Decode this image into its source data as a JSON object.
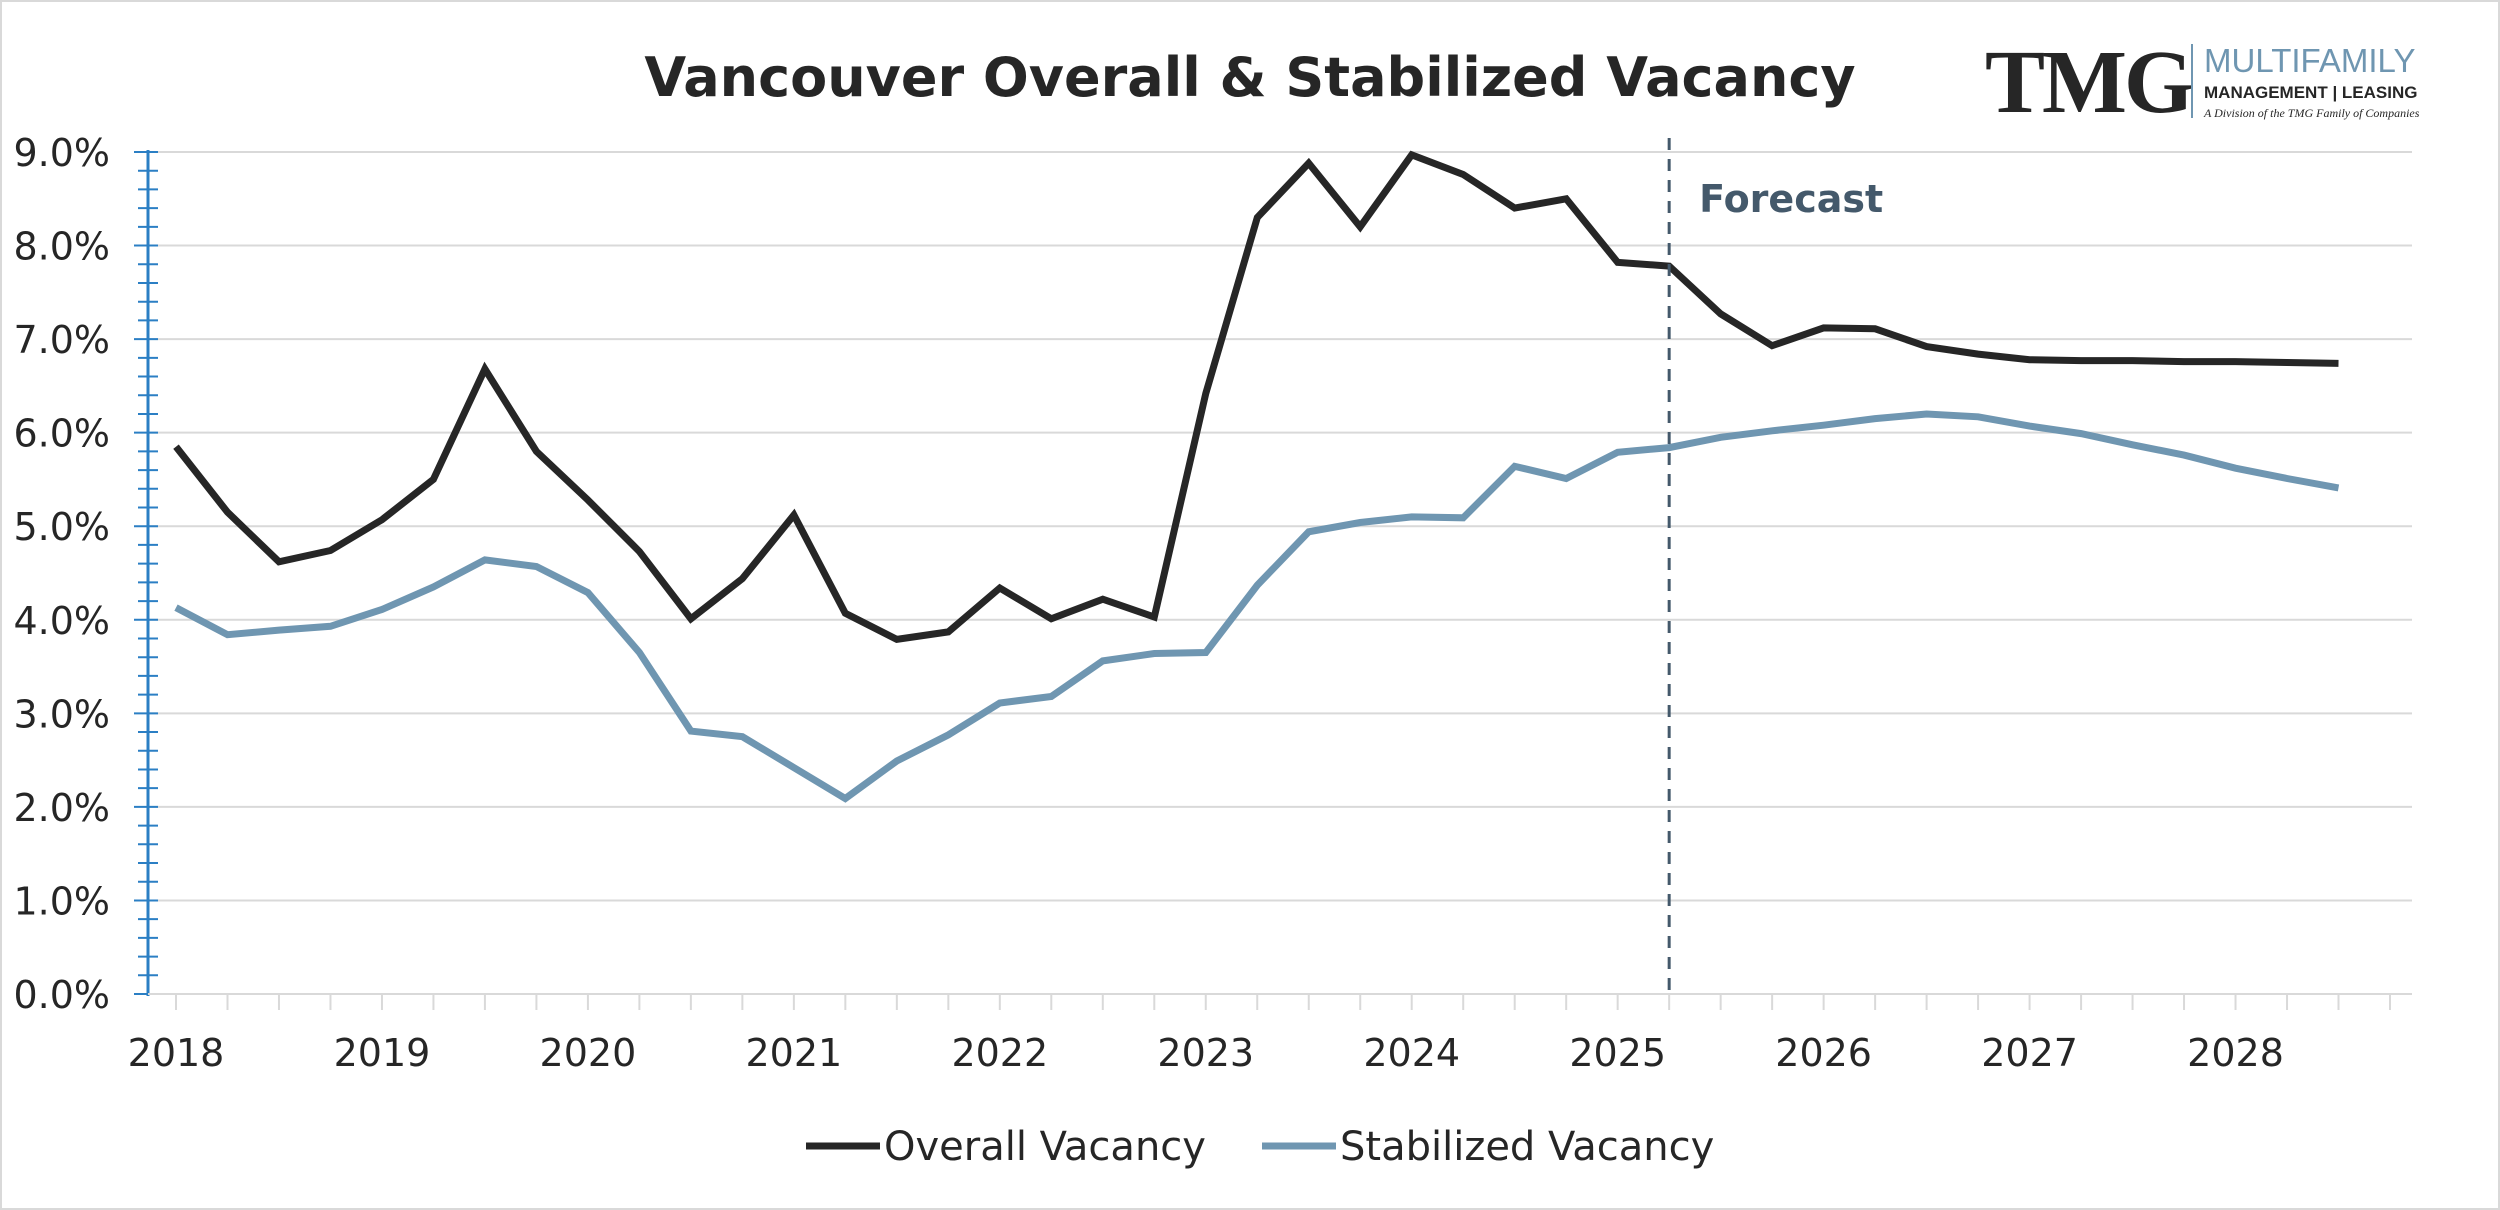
{
  "colors": {
    "overall": "#262626",
    "stabilized": "#6f96b1",
    "forecast": "#44596b",
    "grid": "#d9d9d9",
    "axis_ticks": "#2b7fc4",
    "title": "#262626",
    "logo_dark": "#262626",
    "logo_blue": "#6f96b1"
  },
  "logo": {
    "wordmark": "TMG",
    "line1": "MULTIFAMILY",
    "line2": "MANAGEMENT | LEASING",
    "line3": "A Division of the TMG Family of Companies"
  },
  "chart_data": {
    "type": "line",
    "title": "Vancouver Overall & Stabilized Vacancy",
    "xlabel": "",
    "ylabel": "",
    "ylim": [
      0,
      9
    ],
    "y_ticks": [
      "0.0%",
      "1.0%",
      "2.0%",
      "3.0%",
      "4.0%",
      "5.0%",
      "6.0%",
      "7.0%",
      "8.0%",
      "9.0%"
    ],
    "x_tick_labels": [
      "2018",
      "2019",
      "2020",
      "2021",
      "2022",
      "2023",
      "2024",
      "2025",
      "2026",
      "2027",
      "2028"
    ],
    "x_start_year": 2018,
    "x_step": 0.25,
    "forecast_start": 2025.25,
    "forecast_label": "Forecast",
    "legend_position": "bottom",
    "series": [
      {
        "name": "Overall Vacancy",
        "values": [
          5.85,
          5.15,
          4.62,
          4.74,
          5.07,
          5.5,
          6.68,
          5.8,
          5.28,
          4.73,
          4.01,
          4.44,
          5.12,
          4.07,
          3.79,
          3.87,
          4.34,
          4.01,
          4.22,
          4.03,
          6.42,
          8.3,
          8.88,
          8.2,
          8.97,
          8.76,
          8.4,
          8.5,
          7.82,
          7.78,
          7.27,
          6.93,
          7.12,
          7.11,
          6.92,
          6.84,
          6.78,
          6.77,
          6.77,
          6.76,
          6.76,
          6.75,
          6.74
        ]
      },
      {
        "name": "Stabilized Vacancy",
        "values": [
          4.13,
          3.84,
          3.89,
          3.93,
          4.11,
          4.35,
          4.64,
          4.57,
          4.29,
          3.65,
          2.81,
          2.75,
          2.42,
          2.09,
          2.49,
          2.77,
          3.11,
          3.18,
          3.56,
          3.64,
          3.65,
          4.37,
          4.94,
          5.04,
          5.1,
          5.09,
          5.64,
          5.51,
          5.79,
          5.84,
          5.95,
          6.02,
          6.08,
          6.15,
          6.2,
          6.17,
          6.07,
          5.99,
          5.87,
          5.76,
          5.62,
          5.51,
          5.41
        ]
      }
    ]
  }
}
